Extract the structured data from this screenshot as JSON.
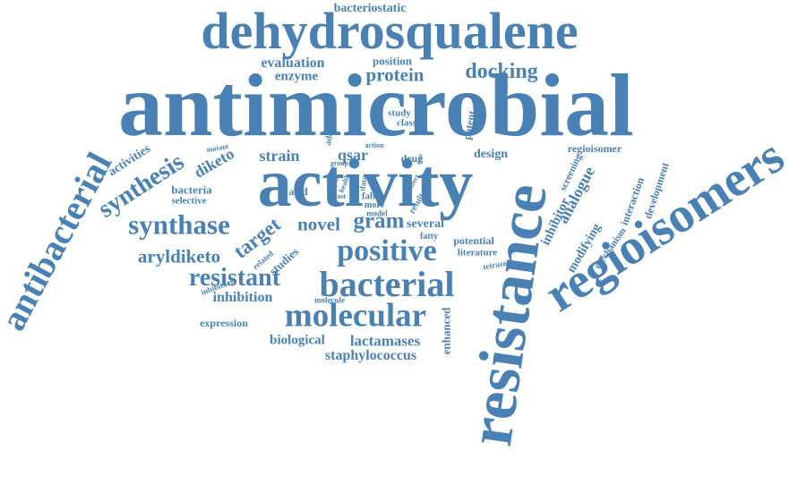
{
  "color": "#4a81b4",
  "words": [
    "antimicrobial",
    "activity",
    "dehydrosqualene",
    "resistance",
    "regioisomers",
    "antibacterial",
    "bacterial",
    "molecular",
    "positive",
    "synthase",
    "synthesis",
    "resistant",
    "docking",
    "protein",
    "gram",
    "novel",
    "target",
    "aryldiketo",
    "lactamases",
    "staphylococcus",
    "inhibitor",
    "analogue",
    "diketo",
    "strain",
    "qsar",
    "biological",
    "inhibition",
    "enhanced",
    "bacteriostatic",
    "evaluation",
    "enzyme",
    "position",
    "design",
    "regioisomer",
    "bacteria",
    "several",
    "expression",
    "selective",
    "modifying",
    "screening",
    "development",
    "interaction",
    "mechanism",
    "activities",
    "potent",
    "study",
    "class",
    "addition",
    "potential",
    "literature",
    "studies",
    "related",
    "inhibitory",
    "tetrazole",
    "fabi",
    "more",
    "model",
    "fatty",
    "acid",
    "drug",
    "action",
    "group",
    "mutant",
    "agent",
    "health",
    "data",
    "result",
    "effect",
    "most",
    "molecule",
    "rate"
  ]
}
